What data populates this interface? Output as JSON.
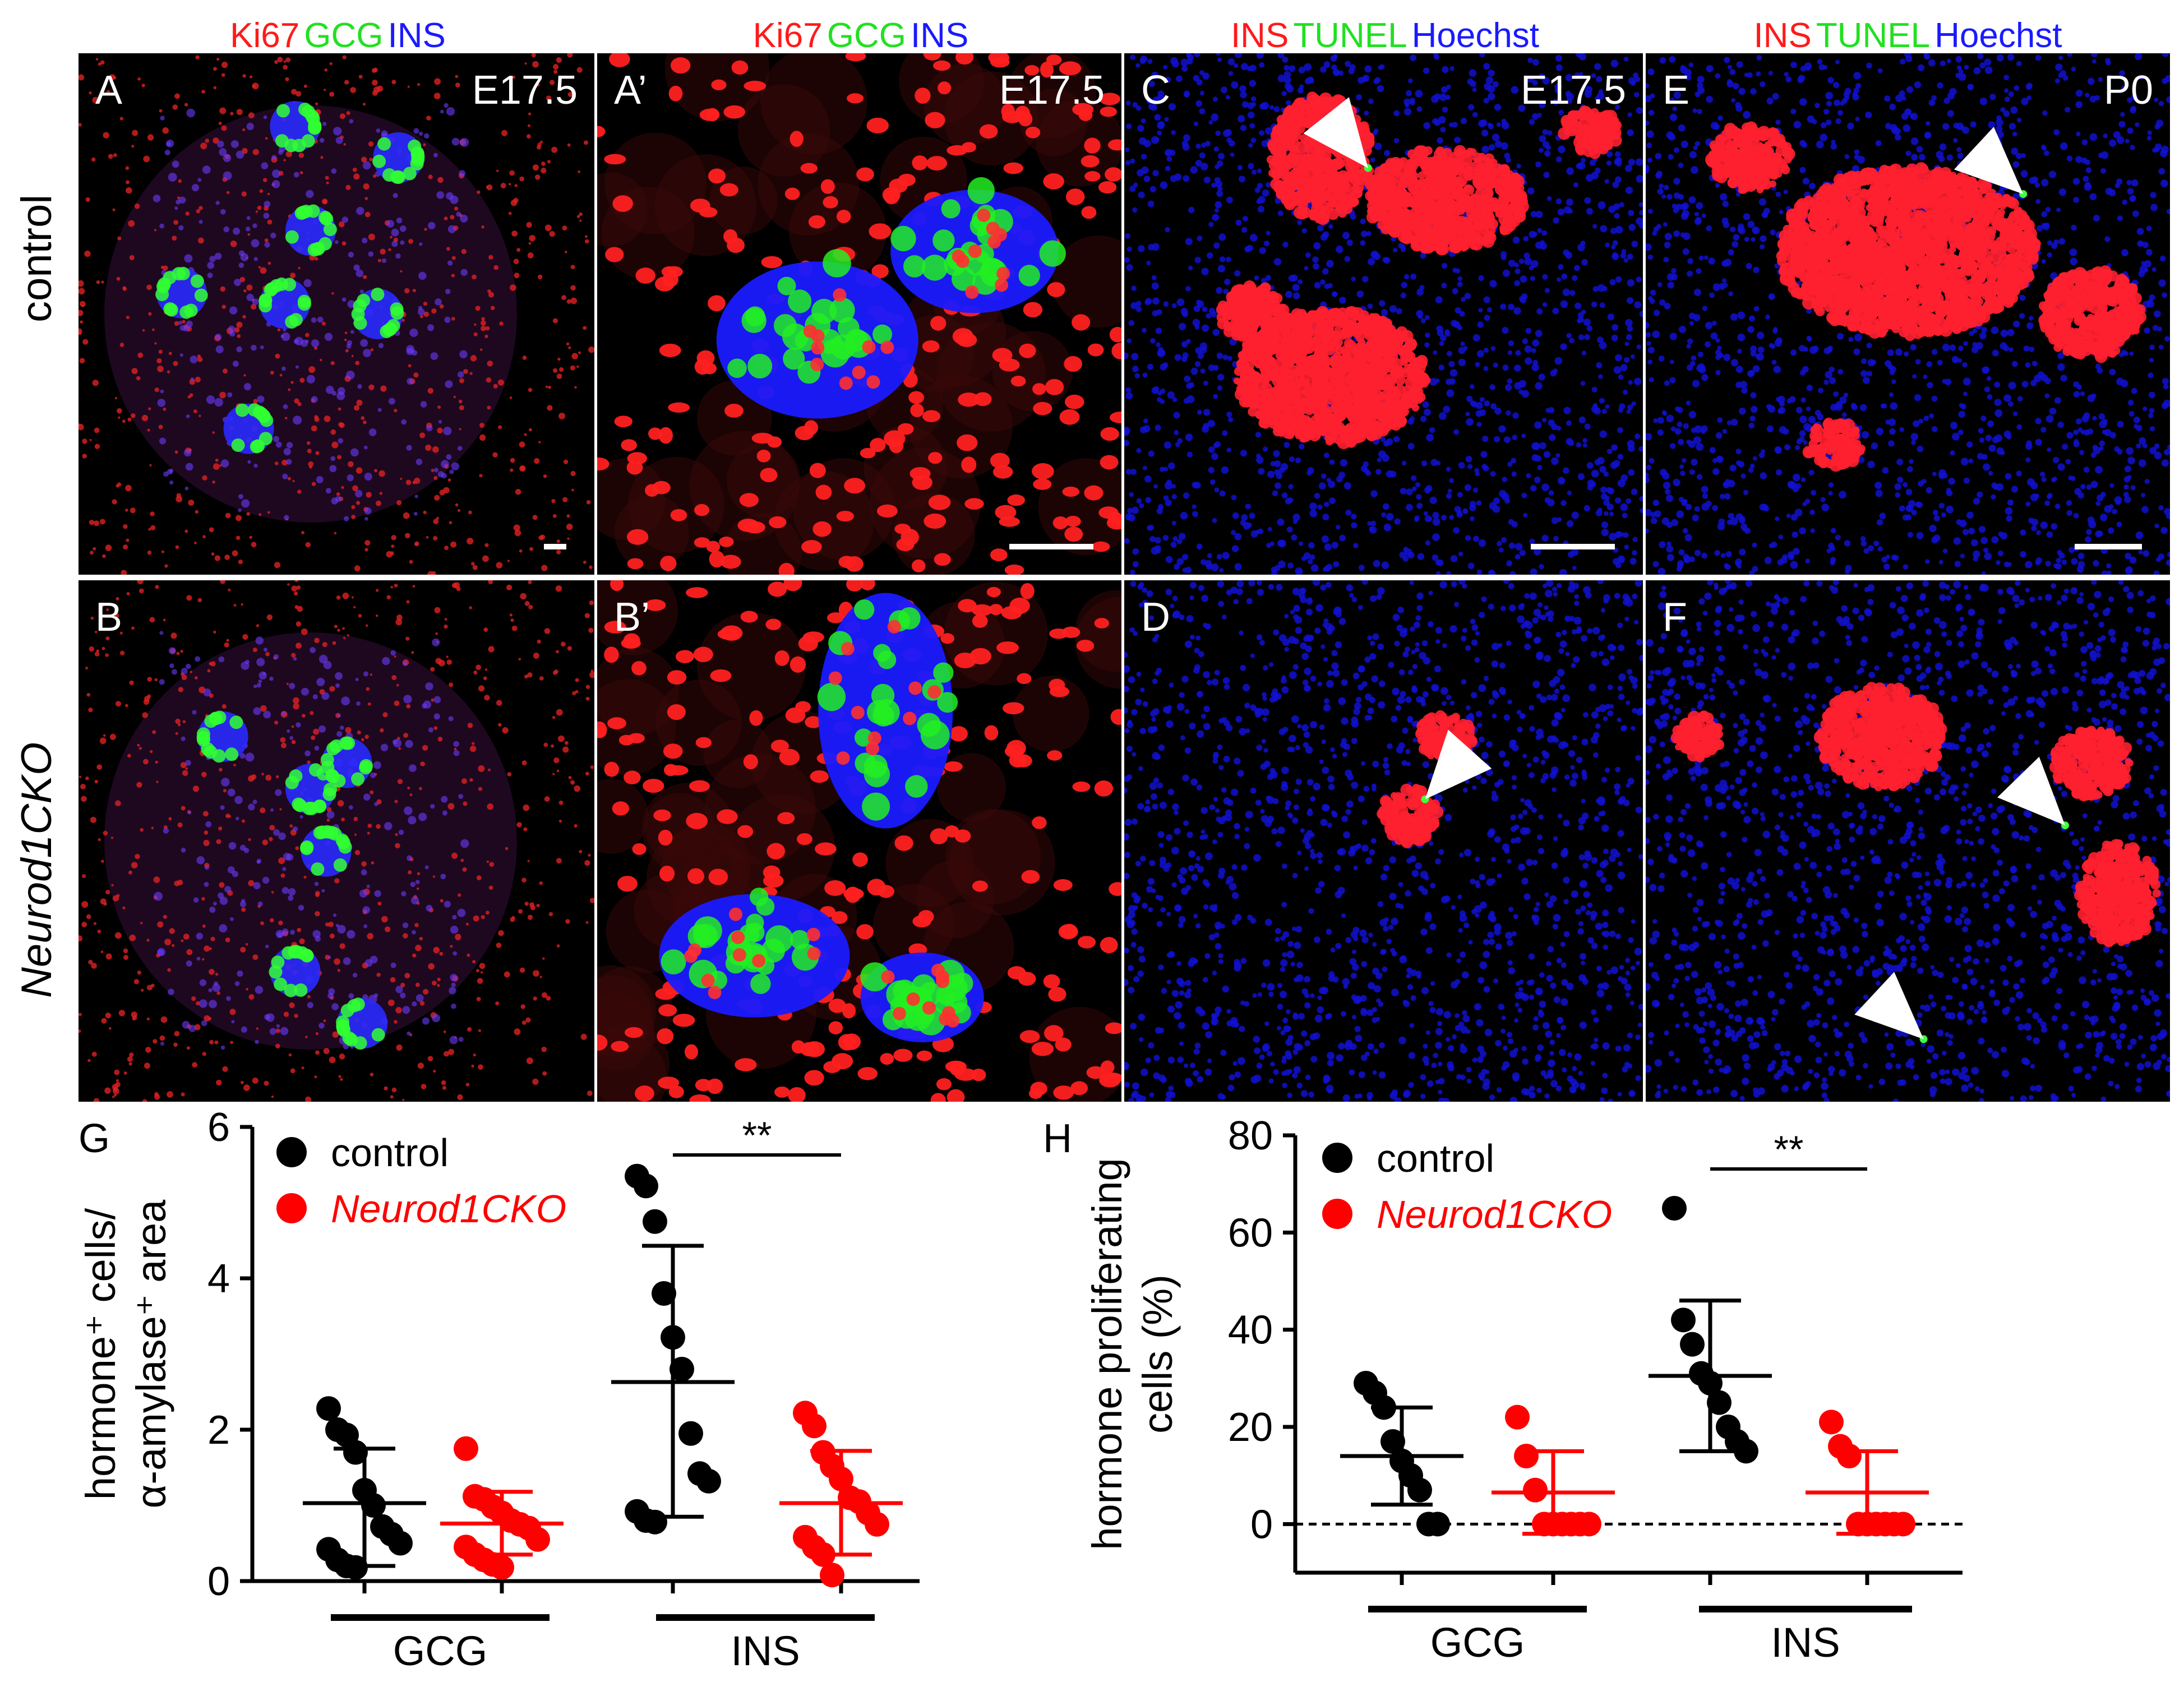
{
  "colors": {
    "red": "#ff1a1a",
    "green": "#22e022",
    "blue": "#1a1aff"
  },
  "headers": [
    {
      "words": [
        {
          "t": "Ki67",
          "c": "red"
        },
        {
          "t": "GCG",
          "c": "green"
        },
        {
          "t": "INS",
          "c": "blue"
        }
      ]
    },
    {
      "words": [
        {
          "t": "Ki67",
          "c": "red"
        },
        {
          "t": "GCG",
          "c": "green"
        },
        {
          "t": "INS",
          "c": "blue"
        }
      ]
    },
    {
      "words": [
        {
          "t": "INS",
          "c": "red"
        },
        {
          "t": "TUNEL",
          "c": "green"
        },
        {
          "t": "Hoechst",
          "c": "blue"
        }
      ]
    },
    {
      "words": [
        {
          "t": "INS",
          "c": "red"
        },
        {
          "t": "TUNEL",
          "c": "green"
        },
        {
          "t": "Hoechst",
          "c": "blue"
        }
      ]
    }
  ],
  "row_labels": {
    "top": "control",
    "bottom": "Neurod1CKO"
  },
  "panels": [
    {
      "label": "A",
      "stage": "E17.5",
      "style": "lowmag"
    },
    {
      "label": "A’",
      "stage": "E17.5",
      "style": "highmag"
    },
    {
      "label": "C",
      "stage": "E17.5",
      "style": "tunel"
    },
    {
      "label": "E",
      "stage": "P0",
      "style": "tunel"
    },
    {
      "label": "B",
      "stage": "",
      "style": "lowmag"
    },
    {
      "label": "B’",
      "stage": "",
      "style": "highmag"
    },
    {
      "label": "D",
      "stage": "",
      "style": "tunel"
    },
    {
      "label": "F",
      "stage": "",
      "style": "tunel"
    }
  ],
  "chart_data": [
    {
      "panel": "G",
      "type": "scatter",
      "ylabel_line1": "hormone⁺ cells/",
      "ylabel_line2": "α-amylase⁺ area",
      "ylim": [
        0,
        6
      ],
      "yticks": [
        "0",
        "2",
        "4",
        "6"
      ],
      "groups": [
        "GCG",
        "INS"
      ],
      "legend": [
        "control",
        "Neurod1CKO"
      ],
      "significance": "**",
      "series": [
        {
          "name": "control",
          "group": "GCG",
          "color": "#000000",
          "mean": 1.03,
          "sd_low": 0.2,
          "sd_high": 1.75,
          "values": [
            2.28,
            2.0,
            1.93,
            1.7,
            1.2,
            1.0,
            0.72,
            0.62,
            0.5,
            0.42,
            0.28,
            0.2,
            0.18
          ]
        },
        {
          "name": "Neurod1CKO",
          "group": "GCG",
          "color": "#ff0000",
          "mean": 0.76,
          "sd_low": 0.35,
          "sd_high": 1.18,
          "values": [
            1.75,
            1.12,
            1.08,
            0.98,
            0.9,
            0.8,
            0.75,
            0.7,
            0.55,
            0.45,
            0.35,
            0.28,
            0.22,
            0.18
          ]
        },
        {
          "name": "control",
          "group": "INS",
          "color": "#000000",
          "mean": 2.63,
          "sd_low": 0.85,
          "sd_high": 4.43,
          "values": [
            5.35,
            5.22,
            4.75,
            3.8,
            3.22,
            2.8,
            1.95,
            1.42,
            1.32,
            0.92,
            0.8,
            0.78
          ]
        },
        {
          "name": "Neurod1CKO",
          "group": "INS",
          "color": "#ff0000",
          "mean": 1.03,
          "sd_low": 0.35,
          "sd_high": 1.72,
          "values": [
            2.22,
            2.05,
            1.7,
            1.52,
            1.35,
            1.1,
            1.05,
            0.9,
            0.75,
            0.58,
            0.45,
            0.35,
            0.08
          ]
        }
      ]
    },
    {
      "panel": "H",
      "type": "scatter",
      "ylabel_line1": "hormone proliferating",
      "ylabel_line2": "cells (%)",
      "ylim": [
        -10,
        80
      ],
      "yticks": [
        "0",
        "20",
        "40",
        "60",
        "80"
      ],
      "groups": [
        "GCG",
        "INS"
      ],
      "legend": [
        "control",
        "Neurod1CKO"
      ],
      "significance": "**",
      "series": [
        {
          "name": "control",
          "group": "GCG",
          "color": "#000000",
          "mean": 14,
          "sd_low": 4,
          "sd_high": 24,
          "values": [
            29,
            27,
            24,
            17,
            13,
            10,
            7,
            0,
            0
          ]
        },
        {
          "name": "Neurod1CKO",
          "group": "GCG",
          "color": "#ff0000",
          "mean": 6.5,
          "sd_low": -2,
          "sd_high": 15,
          "values": [
            22,
            14,
            7,
            0,
            0,
            0,
            0,
            0,
            0
          ]
        },
        {
          "name": "control",
          "group": "INS",
          "color": "#000000",
          "mean": 30.5,
          "sd_low": 15,
          "sd_high": 46,
          "values": [
            65,
            42,
            37,
            31,
            29,
            25,
            20,
            17,
            15
          ]
        },
        {
          "name": "Neurod1CKO",
          "group": "INS",
          "color": "#ff0000",
          "mean": 6.5,
          "sd_low": -2,
          "sd_high": 15,
          "values": [
            21,
            16,
            14,
            0,
            0,
            0,
            0,
            0,
            0
          ]
        }
      ]
    }
  ]
}
